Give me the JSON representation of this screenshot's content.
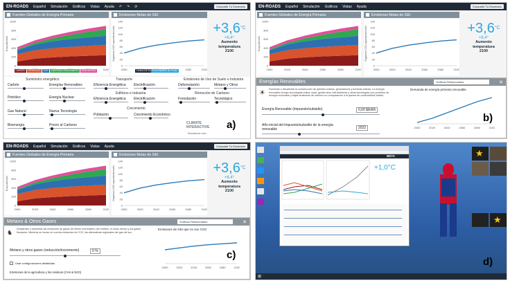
{
  "topbar": {
    "logo": "EN-ROADS",
    "menu": [
      "Español",
      "Simulación",
      "Gráficos",
      "Vistas",
      "Ayuda"
    ],
    "save": "Compartir Tu Escenario"
  },
  "charts": {
    "energy_title": "Fuentes Globales de Energía Primaria",
    "ghg_title": "Emisiones Netas de GEI",
    "energy_ylabel": "Exajoules/año",
    "ghg_ylabel": "Gigatones CO2 equivalentes/año",
    "energy_yticks": [
      "1000",
      "800",
      "600",
      "400",
      "200",
      "0"
    ],
    "ghg_yticks": [
      "140",
      "120",
      "100",
      "80",
      "60",
      "40",
      "20",
      "0"
    ],
    "xticks": [
      "2000",
      "2020",
      "2040",
      "2060",
      "2080",
      "2100"
    ],
    "legend": [
      {
        "label": "CARBÓN",
        "color": "#8b1a1a"
      },
      {
        "label": "PETRÓLEO",
        "color": "#d9532c"
      },
      {
        "label": "GAS",
        "color": "#2e6fb3"
      },
      {
        "label": "ENERGÍAS RENOVABLES",
        "color": "#2fa84f"
      },
      {
        "label": "BIOENERGÍA",
        "color": "#e0509a"
      }
    ],
    "baseline": "LÍNEA DE BASE",
    "current": "ESCENARIO ACTUAL"
  },
  "chart_data": {
    "type": "area",
    "x": [
      2000,
      2020,
      2040,
      2060,
      2080,
      2100
    ],
    "series": [
      {
        "name": "CARBÓN",
        "values": [
          95,
          160,
          190,
          210,
          225,
          240
        ]
      },
      {
        "name": "PETRÓLEO",
        "values": [
          165,
          190,
          205,
          215,
          222,
          230
        ]
      },
      {
        "name": "GAS",
        "values": [
          90,
          130,
          160,
          180,
          195,
          205
        ]
      },
      {
        "name": "ENERGÍAS RENOVABLES",
        "values": [
          20,
          40,
          65,
          95,
          125,
          150
        ]
      },
      {
        "name": "BIOENERGÍA",
        "values": [
          50,
          55,
          60,
          65,
          70,
          75
        ]
      }
    ],
    "ylim": [
      0,
      1000
    ],
    "ghg": {
      "x": [
        2000,
        2020,
        2040,
        2060,
        2080,
        2100
      ],
      "values": [
        40,
        55,
        65,
        72,
        78,
        82
      ],
      "ylim": [
        0,
        140
      ]
    }
  },
  "temperature": {
    "value": "+3,6",
    "unit": "°C",
    "sub": "+6,4°",
    "label1": "Aumento",
    "label2": "temperatura",
    "label3": "2100"
  },
  "panel_b_temp": {
    "value": "+3,6",
    "sub": "+6,4°"
  },
  "panel_c_temp": {
    "value": "+3,6",
    "sub": "+6,4°"
  },
  "sliders": {
    "groups": [
      "Suministro energético",
      "Transporte",
      "Emisiones de Uso de Suelo e Industria",
      "Edificios e Industria",
      "Remoción de Carbono",
      "Crecimiento"
    ],
    "items": [
      "Carbón",
      "Energías Renovables",
      "Eficiencia Energética",
      "Electrificación",
      "Deforestación",
      "Metano y Otros",
      "Petróleo",
      "Energía Nuclear",
      "Eficiencia Energética",
      "Electrificación",
      "Forestación",
      "Tecnológico",
      "Gas Natural",
      "Nueva Tecnología",
      "Población",
      "Crecimiento Económico",
      "Bioenergía",
      "Precio al Carbono"
    ],
    "status": "status quo",
    "brand": "CLIMATE INTERACTIVE",
    "reset": "Restablecer todo"
  },
  "panel_b": {
    "title": "Energías Renovables",
    "dropdown": "Gráficos Relacionados",
    "text": "Fomentar o desalentar la construcción de paneles solares, generadores y turbinas eólicas. La energía renovable incluye tecnologías eólica, solar, geotérmica, hidroeléctrica y otras tecnologías con previsión de energía renovable y bajas emisiones de carbono en comparación a la quema de combustibles fósiles.",
    "slider_label": "Energía Renovable (impuesto/subsidio)",
    "slider_value": "0,00 $/kWh",
    "year_label": "Año inicial del impuesto/subsidio de la energía renovable",
    "year_value": "2022",
    "chart_title": "Demanda de energía primaria renovable"
  },
  "panel_c": {
    "title": "Metano & Otros Gases",
    "dropdown": "Gráficos Relacionados",
    "text": "Desalentar o aumentar las emisiones de gases de efecto invernadero del metano, el óxido nitroso y los gases fluorados. Mientras se toman en cuenta emisiones de CO2, las alternativas regionales del gas del sur.",
    "slider_label": "Metano y otros gases (reducción/incremento)",
    "slider_value": "0 %",
    "checkbox": "Usar configuraciones detalladas",
    "sub_slider": "Emisiones de la agricultura y los residuos (CH4 & N2O)",
    "chart_title": "Emisiones de GEI que no son CO2"
  },
  "panel_d": {
    "beta": "BETA",
    "temp": "+1,0°C",
    "zoom_tabs": [
      "Inicio",
      "Compartir",
      "Chat"
    ]
  },
  "letters": [
    "a)",
    "b)",
    "c)",
    "d)"
  ]
}
